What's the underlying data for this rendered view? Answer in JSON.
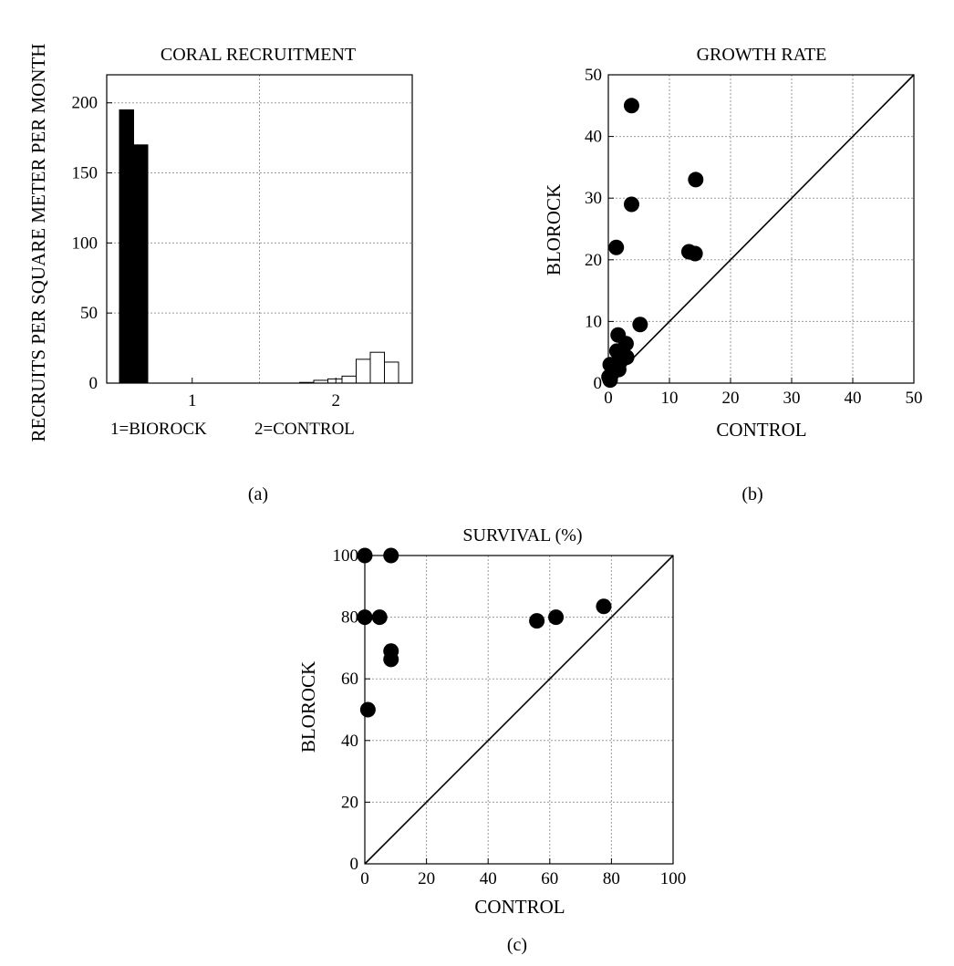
{
  "chart_data": [
    {
      "type": "bar",
      "title": "CORAL RECRUITMENT",
      "xlabel": "",
      "ylabel": "RECRUITS PER SQUARE METER PER MONTH",
      "ylim": [
        0,
        220
      ],
      "yticks": [
        0,
        50,
        100,
        150,
        200
      ],
      "xticks": [
        "1",
        "2"
      ],
      "legend_note": "1=BIOROCK           2=CONTROL",
      "panel_label": "(a)",
      "grid": true,
      "series": [
        {
          "group": "1",
          "values": [
            195,
            170
          ],
          "fill": "#000000"
        },
        {
          "group": "2",
          "values": [
            0.5,
            2,
            3,
            5,
            17,
            22,
            15
          ],
          "fill": "#ffffff"
        }
      ]
    },
    {
      "type": "scatter",
      "title": "GROWTH RATE",
      "xlabel": "CONTROL",
      "ylabel": "BLOROCK",
      "xlim": [
        0,
        50
      ],
      "ylim": [
        0,
        50
      ],
      "xticks": [
        0,
        10,
        20,
        30,
        40,
        50
      ],
      "yticks": [
        0,
        10,
        20,
        30,
        40,
        50
      ],
      "panel_label": "(b)",
      "grid": true,
      "reference_line": "y=x",
      "points": [
        [
          3.8,
          45
        ],
        [
          14.3,
          33
        ],
        [
          3.8,
          29
        ],
        [
          1.3,
          22
        ],
        [
          13.2,
          21.3
        ],
        [
          14.2,
          21
        ],
        [
          5.2,
          9.5
        ],
        [
          1.6,
          7.8
        ],
        [
          2.9,
          6.4
        ],
        [
          1.4,
          5.2
        ],
        [
          2.2,
          5
        ],
        [
          3,
          4.2
        ],
        [
          1.9,
          3.4
        ],
        [
          0.3,
          3
        ],
        [
          1,
          2.6
        ],
        [
          0.8,
          2.1
        ],
        [
          1.7,
          2.2
        ],
        [
          0.5,
          1.4
        ],
        [
          0.1,
          1
        ],
        [
          0.3,
          0.5
        ]
      ]
    },
    {
      "type": "scatter",
      "title": "SURVIVAL (%)",
      "xlabel": "CONTROL",
      "ylabel": "BLOROCK",
      "xlim": [
        0,
        100
      ],
      "ylim": [
        0,
        100
      ],
      "xticks": [
        0,
        20,
        40,
        60,
        80,
        100
      ],
      "yticks": [
        0,
        20,
        40,
        60,
        80,
        100
      ],
      "panel_label": "(c)",
      "grid": true,
      "reference_line": "y=x",
      "points": [
        [
          0,
          100
        ],
        [
          8.5,
          100
        ],
        [
          0,
          80
        ],
        [
          4.8,
          80
        ],
        [
          8.5,
          69
        ],
        [
          8.5,
          66.3
        ],
        [
          1,
          50
        ],
        [
          55.8,
          78.8
        ],
        [
          62,
          80
        ],
        [
          77.5,
          83.5
        ]
      ]
    }
  ]
}
